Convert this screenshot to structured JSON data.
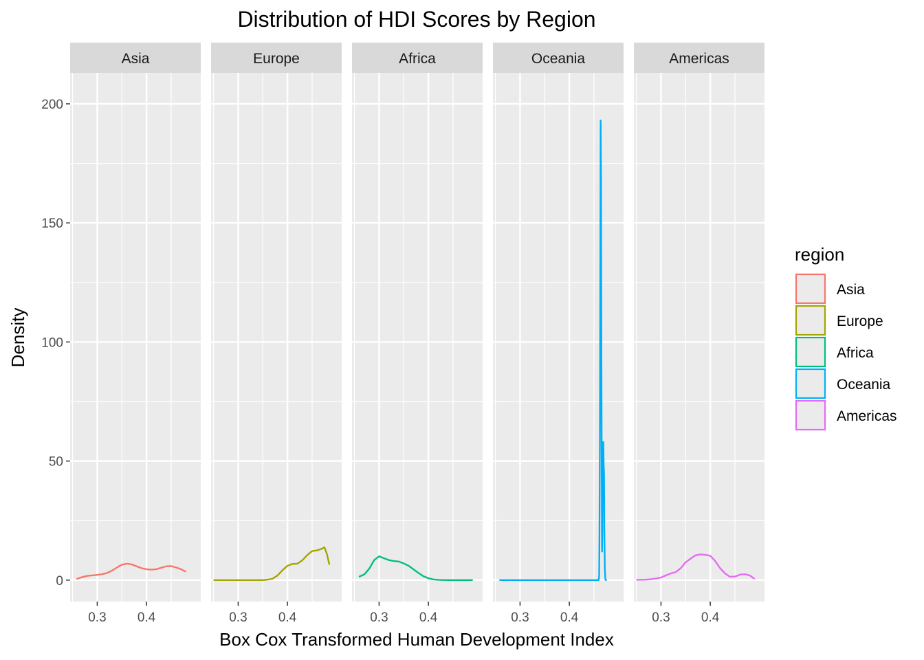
{
  "chart_data": {
    "type": "line",
    "kind": "faceted density plot",
    "title": "Distribution of HDI Scores by Region",
    "xlabel": "Box Cox Transformed Human Development Index",
    "ylabel": "Density",
    "xlim": [
      0.245,
      0.51
    ],
    "ylim": [
      -9,
      213
    ],
    "x_ticks": [
      0.3,
      0.4
    ],
    "x_tick_labels": [
      "0.3",
      "0.4"
    ],
    "y_ticks": [
      0,
      50,
      100,
      150,
      200
    ],
    "y_tick_labels": [
      "0",
      "50",
      "100",
      "150",
      "200"
    ],
    "grid": true,
    "legend": {
      "title": "region",
      "position": "right"
    },
    "facets": [
      {
        "name": "Asia",
        "color": "#F8766D",
        "x": [
          0.258,
          0.27,
          0.28,
          0.29,
          0.3,
          0.31,
          0.32,
          0.33,
          0.34,
          0.35,
          0.36,
          0.37,
          0.38,
          0.39,
          0.4,
          0.41,
          0.42,
          0.43,
          0.44,
          0.45,
          0.46,
          0.47,
          0.48
        ],
        "y": [
          0.5,
          1.3,
          1.8,
          2.0,
          2.2,
          2.5,
          3.0,
          4.0,
          5.3,
          6.5,
          6.9,
          6.6,
          5.8,
          5.0,
          4.6,
          4.4,
          4.6,
          5.2,
          5.8,
          5.9,
          5.3,
          4.6,
          3.5
        ]
      },
      {
        "name": "Europe",
        "color": "#A3A500",
        "x": [
          0.25,
          0.27,
          0.29,
          0.31,
          0.33,
          0.35,
          0.36,
          0.37,
          0.38,
          0.39,
          0.4,
          0.41,
          0.42,
          0.43,
          0.44,
          0.45,
          0.46,
          0.47,
          0.475,
          0.48,
          0.485
        ],
        "y": [
          0,
          0,
          0,
          0,
          0,
          0,
          0.2,
          0.6,
          2.0,
          4.2,
          6.0,
          6.8,
          6.9,
          8.3,
          10.5,
          12.2,
          12.5,
          13.2,
          13.8,
          11.0,
          6.5
        ]
      },
      {
        "name": "Africa",
        "color": "#00BF7D",
        "x": [
          0.259,
          0.27,
          0.28,
          0.29,
          0.3,
          0.31,
          0.32,
          0.33,
          0.34,
          0.35,
          0.36,
          0.37,
          0.38,
          0.39,
          0.4,
          0.41,
          0.42,
          0.43,
          0.44,
          0.45,
          0.47,
          0.49
        ],
        "y": [
          1.4,
          2.4,
          4.8,
          8.4,
          10.0,
          9.2,
          8.4,
          8.0,
          7.8,
          7.0,
          6.0,
          4.5,
          3.0,
          1.6,
          0.8,
          0.3,
          0.1,
          0.05,
          0,
          0,
          0,
          0
        ]
      },
      {
        "name": "Oceania",
        "color": "#00B0F6",
        "x": [
          0.258,
          0.3,
          0.35,
          0.4,
          0.45,
          0.4595,
          0.4605,
          0.461,
          0.462,
          0.4628,
          0.4635,
          0.4643,
          0.465,
          0.4657,
          0.4663,
          0.467,
          0.468,
          0.469,
          0.4697,
          0.4704,
          0.471,
          0.472,
          0.473,
          0.474,
          0.475,
          0.476
        ],
        "y": [
          0,
          0,
          0,
          0,
          0,
          0,
          2,
          15,
          60,
          130,
          193,
          170,
          100,
          45,
          12,
          20,
          58,
          58,
          48,
          45,
          22,
          5,
          0.5,
          0,
          0,
          0
        ]
      },
      {
        "name": "Americas",
        "color": "#E76BF3",
        "x": [
          0.25,
          0.27,
          0.28,
          0.29,
          0.3,
          0.31,
          0.32,
          0.33,
          0.34,
          0.35,
          0.36,
          0.37,
          0.38,
          0.39,
          0.4,
          0.41,
          0.42,
          0.43,
          0.44,
          0.45,
          0.46,
          0.47,
          0.48,
          0.49
        ],
        "y": [
          0.1,
          0.2,
          0.4,
          0.7,
          1.1,
          2.0,
          2.8,
          3.4,
          5.0,
          7.5,
          9.0,
          10.4,
          10.8,
          10.6,
          10.2,
          8.0,
          5.0,
          2.8,
          1.4,
          1.5,
          2.3,
          2.5,
          2.0,
          0.5
        ]
      }
    ]
  }
}
